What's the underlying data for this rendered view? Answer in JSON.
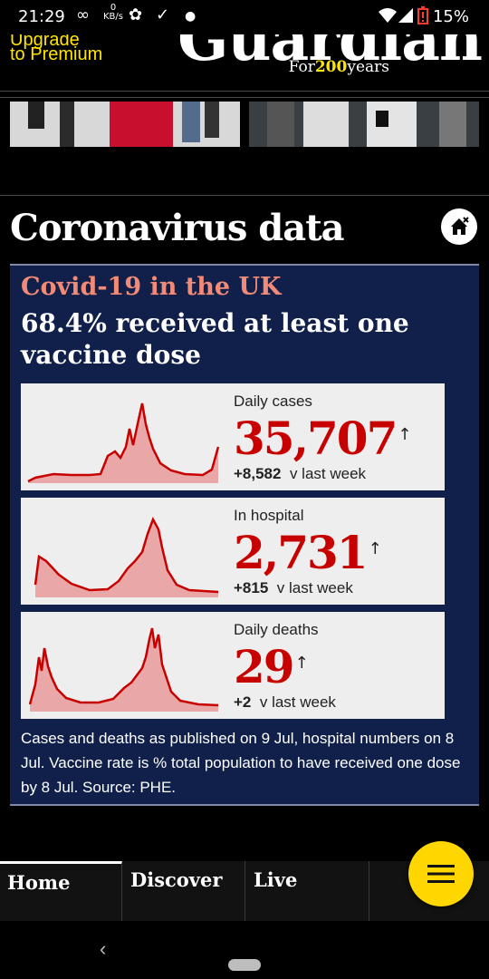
{
  "status_bar": {
    "time": "21:29",
    "net_speed_top": "0",
    "net_speed_unit": "KB/s",
    "battery": "15%",
    "icons": [
      "infinity-icon",
      "speed-icon",
      "coronavirus-icon",
      "check-icon",
      "dot-icon",
      "wifi-icon",
      "signal-icon",
      "battery-alert-icon"
    ]
  },
  "header": {
    "premium_line1": "Upgrade",
    "premium_line2": "to Premium",
    "logo": "Guardian",
    "tagline_pre": "For",
    "tagline_num": "200",
    "tagline_post": "years"
  },
  "section": {
    "title": "Coronavirus data"
  },
  "card": {
    "kicker": "Covid-19 in the UK",
    "headline": "68.4% received at least one vaccine dose",
    "panels": [
      {
        "label": "Daily cases",
        "value": "35,707",
        "arrow": "↑",
        "change": "+8,582",
        "change_suffix": "v last week"
      },
      {
        "label": "In hospital",
        "value": "2,731",
        "arrow": "↑",
        "change": "+815",
        "change_suffix": "v last week"
      },
      {
        "label": "Daily deaths",
        "value": "29",
        "arrow": "↑",
        "change": "+2",
        "change_suffix": "v last week"
      }
    ],
    "footnote": "Cases and deaths as published on 9 Jul, hospital numbers on 8 Jul. Vaccine rate is % total population to have received one dose by 8 Jul. Source: PHE."
  },
  "tabs": [
    {
      "label": "Home",
      "active": true
    },
    {
      "label": "Discover",
      "active": false
    },
    {
      "label": "Live",
      "active": false
    }
  ],
  "colors": {
    "accent_yellow": "#ffe500",
    "card_bg": "#10204a",
    "kicker": "#f28a78",
    "value_red": "#c70000",
    "fab": "#ffd600"
  }
}
